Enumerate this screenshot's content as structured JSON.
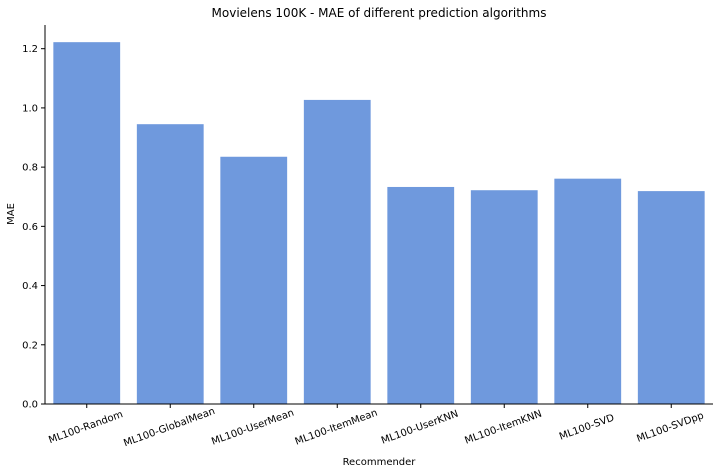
{
  "chart_data": {
    "type": "bar",
    "title": "Movielens 100K - MAE of different prediction algorithms",
    "xlabel": "Recommender",
    "ylabel": "MAE",
    "categories": [
      "ML100-Random",
      "ML100-GlobalMean",
      "ML100-UserMean",
      "ML100-ItemMean",
      "ML100-UserKNN",
      "ML100-ItemKNN",
      "ML100-SVD",
      "ML100-SVDpp"
    ],
    "values": [
      1.222,
      0.945,
      0.835,
      1.027,
      0.733,
      0.722,
      0.761,
      0.719
    ],
    "ylim": [
      0,
      1.28
    ],
    "yticks": [
      0.0,
      0.2,
      0.4,
      0.6,
      0.8,
      1.0,
      1.2
    ],
    "ytick_labels": [
      "0.0",
      "0.2",
      "0.4",
      "0.6",
      "0.8",
      "1.0",
      "1.2"
    ],
    "bar_color": "#6f99dd",
    "grid": false,
    "legend": "none"
  }
}
